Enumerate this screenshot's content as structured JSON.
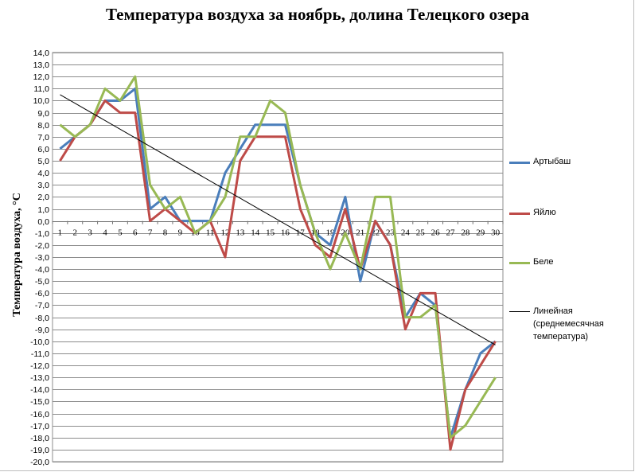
{
  "chart_data": {
    "type": "line",
    "title": "Температура воздуха за ноябрь, долина Телецкого озера",
    "xlabel": "",
    "ylabel": "Температура воздуха, °С",
    "ylim": [
      -20,
      14
    ],
    "ytick_step": 1,
    "grid": "horizontal",
    "legend_position": "right",
    "categories": [
      "1",
      "2",
      "3",
      "4",
      "5",
      "6",
      "7",
      "8",
      "9",
      "10",
      "11",
      "12",
      "13",
      "14",
      "15",
      "16",
      "17",
      "18",
      "19",
      "20",
      "21",
      "22",
      "23",
      "24",
      "25",
      "26",
      "27",
      "28",
      "29",
      "30"
    ],
    "series": [
      {
        "name": "Артыбаш",
        "color": "#4a7ebb",
        "values": [
          6,
          7,
          8,
          10,
          10,
          11,
          1,
          2,
          0,
          0,
          0,
          4,
          6,
          8,
          8,
          8,
          3,
          -1,
          -2,
          2,
          -5,
          0,
          -2,
          -8,
          -6,
          -7,
          -18,
          -14,
          -11,
          -10
        ]
      },
      {
        "name": "Яйлю",
        "color": "#be4b48",
        "values": [
          5,
          7,
          8,
          10,
          9,
          9,
          0,
          1,
          0,
          -1,
          0,
          -3,
          5,
          7,
          7,
          7,
          1,
          -2,
          -3,
          1,
          -4,
          0,
          -2,
          -9,
          -6,
          -6,
          -19,
          -14,
          -12,
          -10
        ]
      },
      {
        "name": "Беле",
        "color": "#98b954",
        "values": [
          8,
          7,
          8,
          11,
          10,
          12,
          3,
          1,
          2,
          -1,
          0,
          2,
          7,
          7,
          10,
          9,
          3,
          -1,
          -4,
          -1,
          -4,
          2,
          2,
          -8,
          -8,
          -7,
          -18,
          -17,
          -15,
          -13
        ]
      }
    ],
    "trendline": {
      "name": "Линейная (среднемесячная температура)",
      "color": "#000000",
      "start": [
        1,
        10.5
      ],
      "end": [
        30,
        -10.3
      ]
    }
  }
}
